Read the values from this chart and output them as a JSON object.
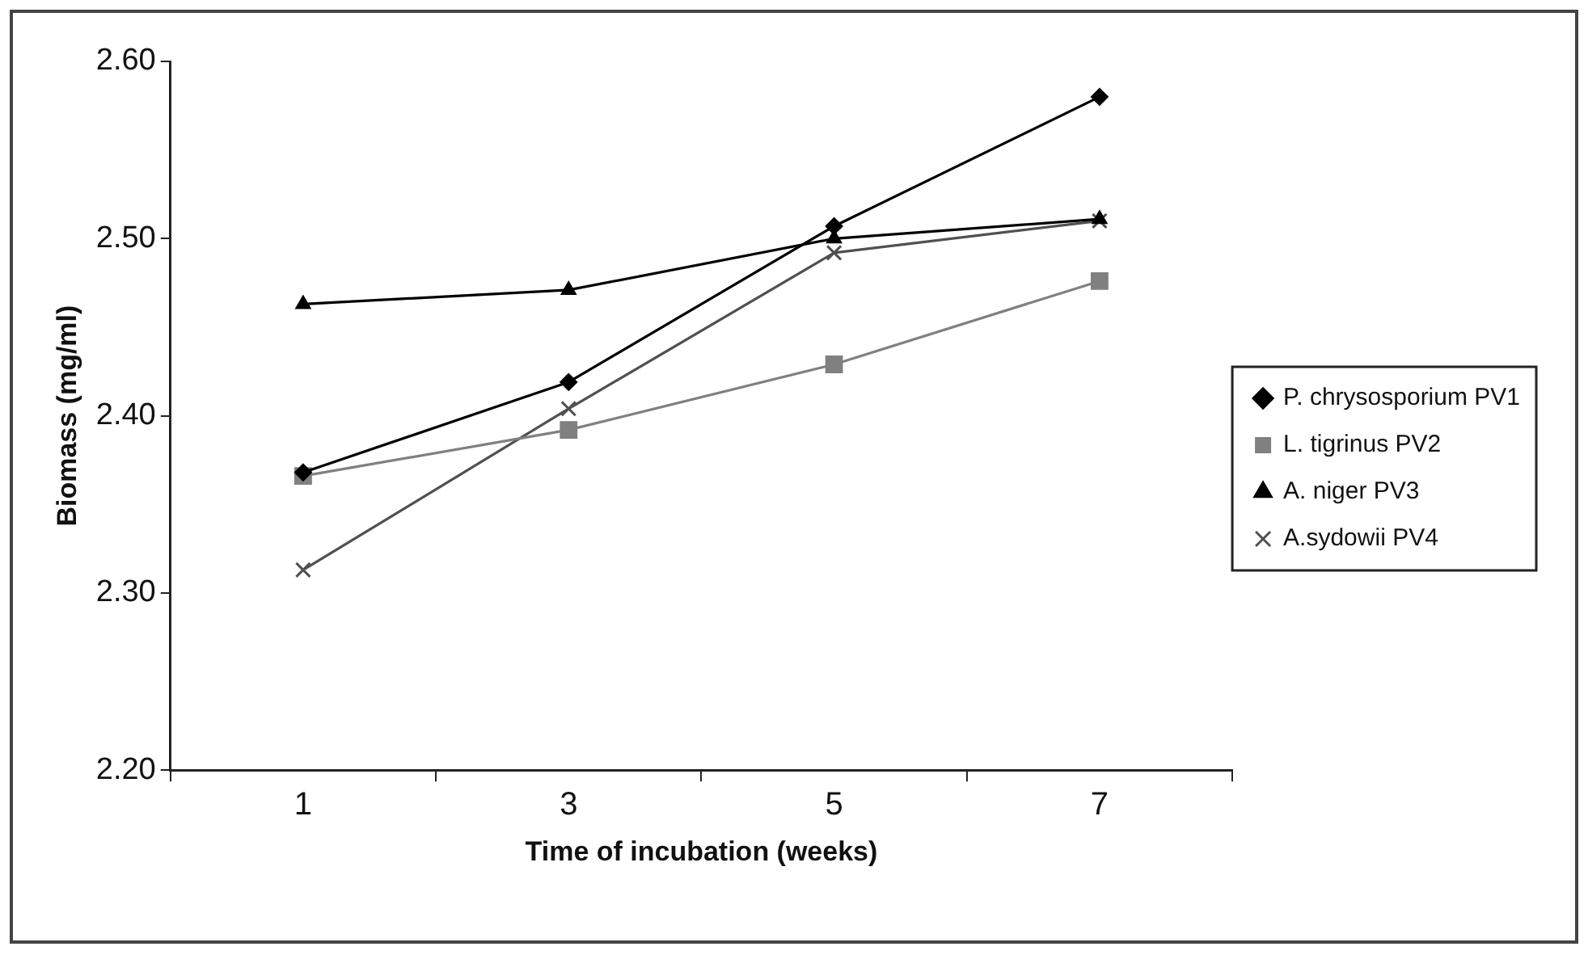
{
  "chart_data": {
    "type": "line",
    "xlabel": "Time of incubation (weeks)",
    "ylabel": "Biomass (mg/ml)",
    "categories": [
      "1",
      "3",
      "5",
      "7"
    ],
    "series": [
      {
        "name": "P. chrysosporium PV1",
        "color": "#000000",
        "marker": "diamond",
        "values": [
          2.368,
          2.419,
          2.507,
          2.58
        ]
      },
      {
        "name": "L. tigrinus PV2",
        "color": "#808080",
        "marker": "square",
        "values": [
          2.366,
          2.392,
          2.429,
          2.476
        ]
      },
      {
        "name": "A. niger PV3",
        "color": "#000000",
        "marker": "triangle",
        "values": [
          2.463,
          2.471,
          2.5,
          2.511
        ]
      },
      {
        "name": "A.sydowii PV4",
        "color": "#505050",
        "marker": "cross",
        "values": [
          2.313,
          2.404,
          2.492,
          2.51
        ]
      }
    ],
    "ylim": [
      2.2,
      2.6
    ],
    "yticks": [
      {
        "value": 2.2,
        "label": "2.20"
      },
      {
        "value": 2.3,
        "label": "2.30"
      },
      {
        "value": 2.4,
        "label": "2.40"
      },
      {
        "value": 2.5,
        "label": "2.50"
      },
      {
        "value": 2.6,
        "label": "2.60"
      }
    ],
    "grid": false,
    "legend": "right",
    "line_style": "solid"
  }
}
